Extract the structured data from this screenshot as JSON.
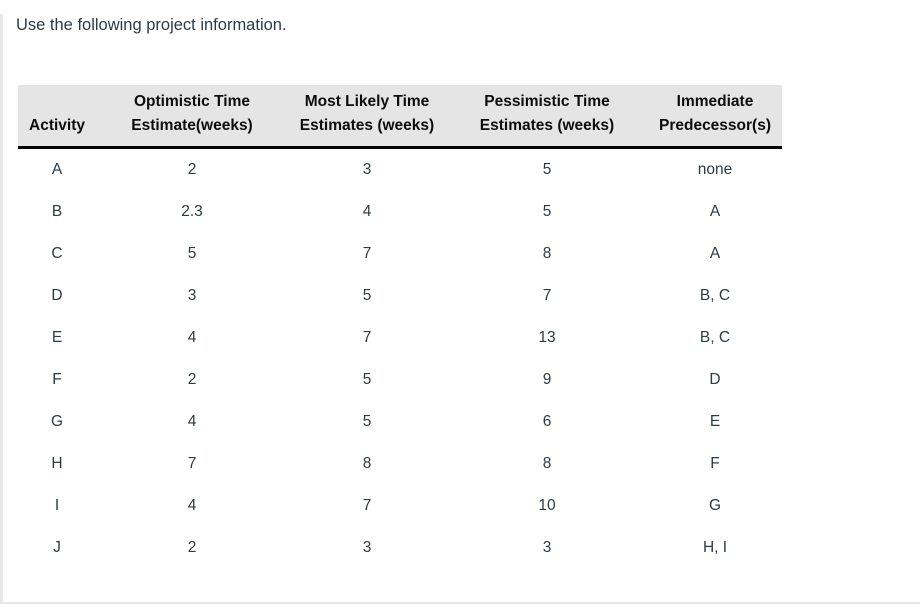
{
  "question": {
    "prompt": "Use the following project information."
  },
  "colors": {
    "header_background": "#e5e5e5",
    "header_text": "#0d0d0d",
    "body_text": "#2d3b45",
    "header_rule": "#000000",
    "panel_border": "#e8e8e8"
  },
  "table": {
    "headers": [
      {
        "line1": "",
        "line2": "Activity"
      },
      {
        "line1": "Optimistic Time",
        "line2": "Estimate(weeks)"
      },
      {
        "line1": "Most Likely Time",
        "line2": "Estimates (weeks)"
      },
      {
        "line1": "Pessimistic Time",
        "line2": "Estimates (weeks)"
      },
      {
        "line1": "Immediate",
        "line2": "Predecessor(s)"
      }
    ],
    "rows": [
      {
        "activity": "A",
        "optimistic": "2",
        "most_likely": "3",
        "pessimistic": "5",
        "predecessors": "none"
      },
      {
        "activity": "B",
        "optimistic": "2.3",
        "most_likely": "4",
        "pessimistic": "5",
        "predecessors": "A"
      },
      {
        "activity": "C",
        "optimistic": "5",
        "most_likely": "7",
        "pessimistic": "8",
        "predecessors": "A"
      },
      {
        "activity": "D",
        "optimistic": "3",
        "most_likely": "5",
        "pessimistic": "7",
        "predecessors": "B, C"
      },
      {
        "activity": "E",
        "optimistic": "4",
        "most_likely": "7",
        "pessimistic": "13",
        "predecessors": "B, C"
      },
      {
        "activity": "F",
        "optimistic": "2",
        "most_likely": "5",
        "pessimistic": "9",
        "predecessors": "D"
      },
      {
        "activity": "G",
        "optimistic": "4",
        "most_likely": "5",
        "pessimistic": "6",
        "predecessors": "E"
      },
      {
        "activity": "H",
        "optimistic": "7",
        "most_likely": "8",
        "pessimistic": "8",
        "predecessors": "F"
      },
      {
        "activity": "I",
        "optimistic": "4",
        "most_likely": "7",
        "pessimistic": "10",
        "predecessors": "G"
      },
      {
        "activity": "J",
        "optimistic": "2",
        "most_likely": "3",
        "pessimistic": "3",
        "predecessors": "H, I"
      }
    ]
  }
}
